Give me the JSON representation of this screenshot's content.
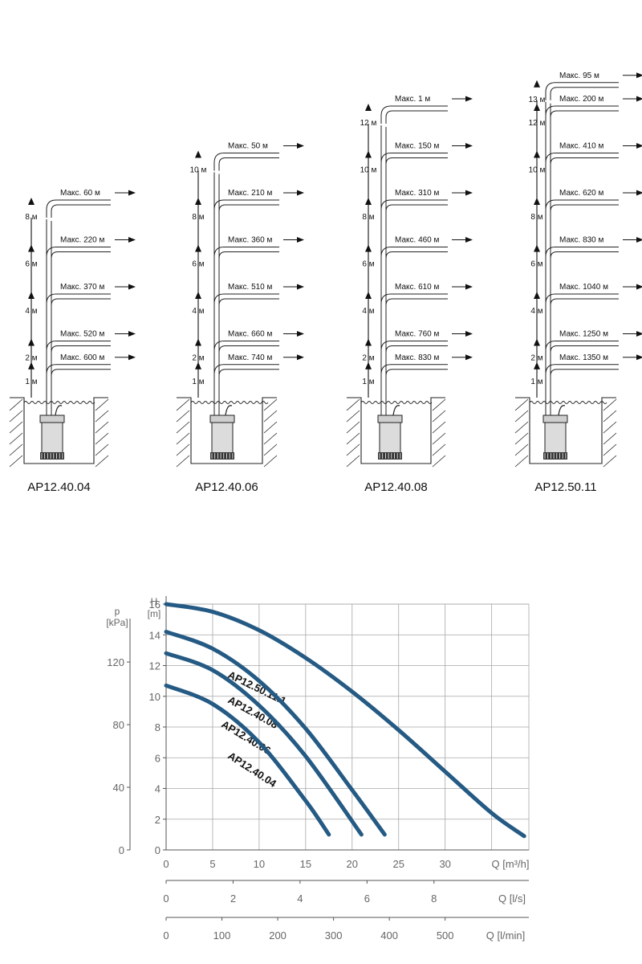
{
  "diagrams": [
    {
      "model": "AP12.40.04",
      "runs": [
        {
          "height": "1 м",
          "distance": "600 м"
        },
        {
          "height": "2 м",
          "distance": "520 м"
        },
        {
          "height": "4 м",
          "distance": "370 м"
        },
        {
          "height": "6 м",
          "distance": "220 м"
        },
        {
          "height": "8 м",
          "distance": "60 м"
        }
      ]
    },
    {
      "model": "AP12.40.06",
      "runs": [
        {
          "height": "1 м",
          "distance": "740 м"
        },
        {
          "height": "2 м",
          "distance": "660 м"
        },
        {
          "height": "4 м",
          "distance": "510 м"
        },
        {
          "height": "6 м",
          "distance": "360 м"
        },
        {
          "height": "8 м",
          "distance": "210 м"
        },
        {
          "height": "10 м",
          "distance": "50 м"
        }
      ]
    },
    {
      "model": "AP12.40.08",
      "runs": [
        {
          "height": "1 м",
          "distance": "830 м"
        },
        {
          "height": "2 м",
          "distance": "760 м"
        },
        {
          "height": "4 м",
          "distance": "610 м"
        },
        {
          "height": "6 м",
          "distance": "460 м"
        },
        {
          "height": "8 м",
          "distance": "310 м"
        },
        {
          "height": "10 м",
          "distance": "150 м"
        },
        {
          "height": "12 м",
          "distance": "1 м"
        }
      ]
    },
    {
      "model": "AP12.50.11",
      "runs": [
        {
          "height": "1 м",
          "distance": "1350 м"
        },
        {
          "height": "2 м",
          "distance": "1250 м"
        },
        {
          "height": "4 м",
          "distance": "1040 м"
        },
        {
          "height": "6 м",
          "distance": "830 м"
        },
        {
          "height": "8 м",
          "distance": "620 м"
        },
        {
          "height": "10 м",
          "distance": "410 м"
        },
        {
          "height": "12 м",
          "distance": "200 м"
        },
        {
          "height": "13 м",
          "distance": "95 м"
        }
      ]
    }
  ],
  "max_label": "Макс.",
  "chart_data": {
    "type": "line",
    "title": "",
    "ylabel_head": "H",
    "ylabel_unit": "[m]",
    "plabel_head": "p",
    "plabel_unit": "[kPa]",
    "xlabel_m3h": "Q [m³/h]",
    "xlabel_ls": "Q [l/s]",
    "xlabel_lmin": "Q [l/min]",
    "xlim": [
      0,
      39
    ],
    "ylim": [
      0,
      16
    ],
    "x_ticks": [
      0,
      5,
      10,
      15,
      20,
      25,
      30
    ],
    "y_ticks": [
      0,
      2,
      4,
      6,
      8,
      10,
      12,
      14,
      16
    ],
    "p_ticks": [
      0,
      40,
      80,
      120
    ],
    "ls_ticks": [
      0,
      2,
      4,
      6,
      8
    ],
    "lmin_ticks": [
      0,
      100,
      200,
      300,
      400,
      500
    ],
    "grid": true,
    "series": [
      {
        "name": "AP12.50.11.1",
        "x": [
          0,
          5,
          10,
          15,
          20,
          25,
          30,
          35,
          38.5
        ],
        "y": [
          16,
          15.5,
          14.3,
          12.5,
          10.3,
          7.8,
          5.1,
          2.4,
          0.9
        ]
      },
      {
        "name": "AP12.40.08",
        "x": [
          0,
          5,
          10,
          15,
          20,
          23.5
        ],
        "y": [
          14.2,
          13.1,
          11,
          7.9,
          3.9,
          1
        ]
      },
      {
        "name": "AP12.40.06",
        "x": [
          0,
          5,
          10,
          15,
          21
        ],
        "y": [
          12.8,
          11.7,
          9.4,
          6.1,
          1
        ]
      },
      {
        "name": "AP12.40.04",
        "x": [
          0,
          5,
          10,
          15,
          17.5
        ],
        "y": [
          10.7,
          9.5,
          7,
          3.2,
          1
        ]
      }
    ]
  }
}
